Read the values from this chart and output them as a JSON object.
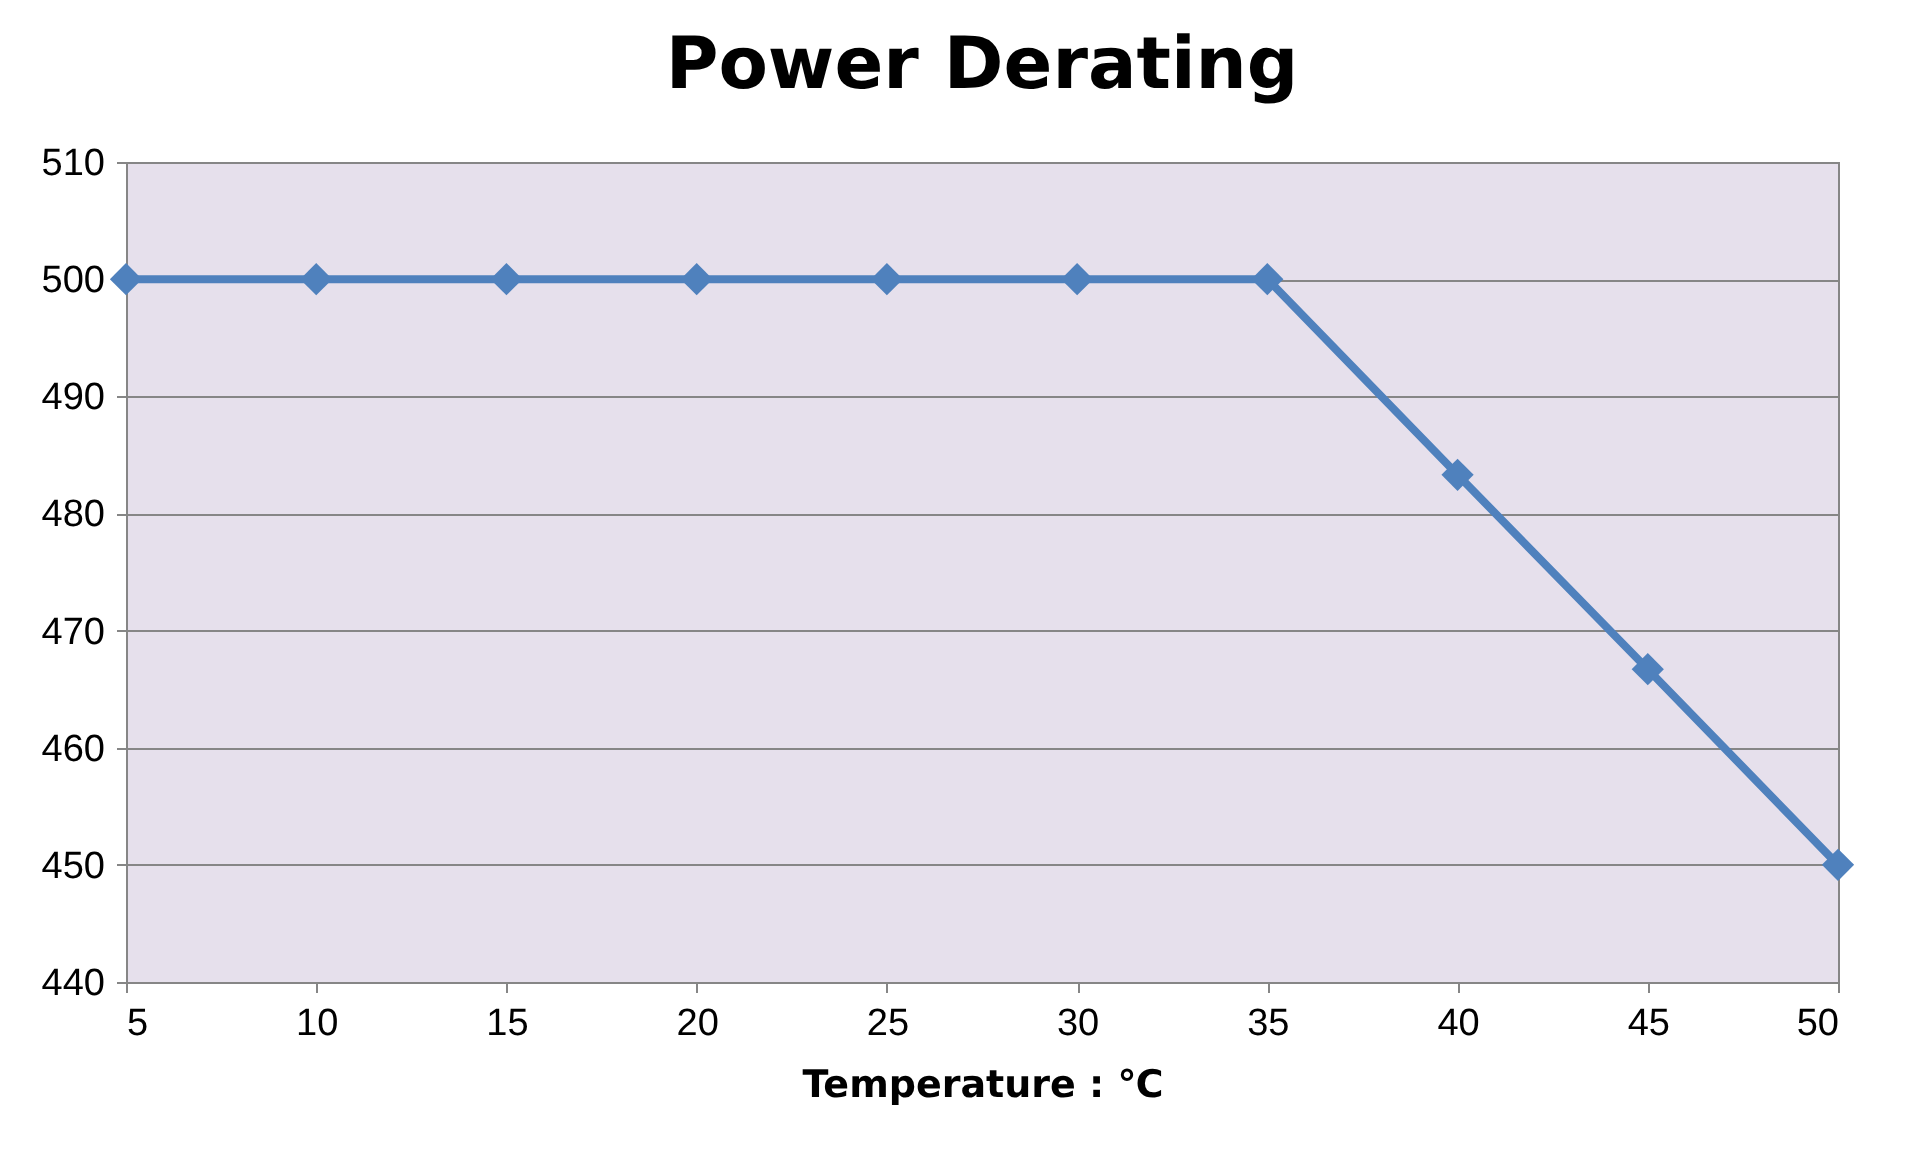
{
  "chart_data": {
    "type": "line",
    "title": "Power Derating",
    "xlabel": "Temperature : ℃",
    "x": [
      5,
      10,
      15,
      20,
      25,
      30,
      35,
      40,
      45,
      50
    ],
    "series": [
      {
        "color": "#4f81bd",
        "values": [
          500,
          500,
          500,
          500,
          500,
          500,
          500,
          483.3,
          466.7,
          450
        ]
      }
    ],
    "xlim": [
      5,
      50
    ],
    "xticks": [
      5,
      10,
      15,
      20,
      25,
      30,
      35,
      40,
      45,
      50
    ],
    "ylim": [
      440,
      510
    ],
    "yticks": [
      440,
      450,
      460,
      470,
      480,
      490,
      500,
      510
    ],
    "grid": "y",
    "marker": "diamond",
    "line_style": "solid"
  }
}
